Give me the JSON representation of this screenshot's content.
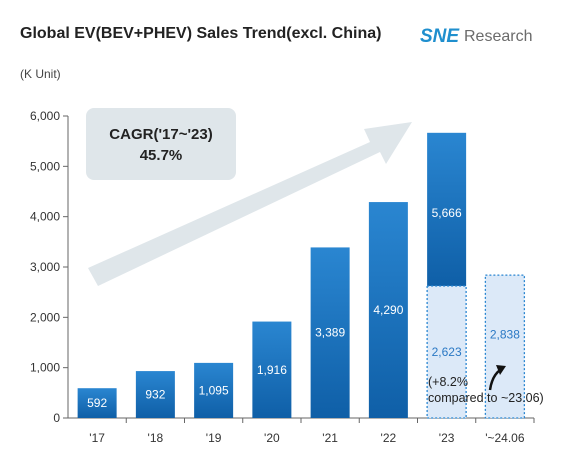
{
  "brand": {
    "logo_mark": "SNE",
    "logo_text": "Research",
    "logo_color": "#1f8fce",
    "text_color": "#6b6b6b"
  },
  "chart_data": {
    "type": "bar",
    "title": "Global EV(BEV+PHEV) Sales Trend(excl. China)",
    "unit_label": "(K Unit)",
    "xlabel": "",
    "ylabel": "",
    "ylim": [
      0,
      6000
    ],
    "yticks": [
      "0",
      "1,000",
      "2,000",
      "3,000",
      "4,000",
      "5,000",
      "6,000"
    ],
    "ytick_values": [
      0,
      1000,
      2000,
      3000,
      4000,
      5000,
      6000
    ],
    "grid": false,
    "categories": [
      "'17",
      "'18",
      "'19",
      "'20",
      "'21",
      "'22",
      "'23",
      "'~24.06"
    ],
    "values": [
      592,
      932,
      1095,
      1916,
      3389,
      4290,
      5666,
      2838
    ],
    "value_labels": [
      "592",
      "932",
      "1,095",
      "1,916",
      "3,389",
      "4,290",
      "5,666",
      "2,838"
    ],
    "highlight": {
      "category": "'23",
      "partial_value": 2623,
      "partial_label": "2,623"
    },
    "cagr": {
      "label": "CAGR('17~'23)",
      "value": "45.7%"
    },
    "annotation": {
      "line1": "(+8.2%",
      "line2": "compared to ~23.06)"
    },
    "colors": {
      "bar_top": "#2a86d1",
      "bar_bottom": "#0f5fa7",
      "dashed_fill": "#dce9f8",
      "dashed_stroke": "#2a86d1",
      "dashed_text": "#2a78c4",
      "arrow": "#dfe6ea",
      "cagr_box": "#dfe6ea"
    }
  }
}
